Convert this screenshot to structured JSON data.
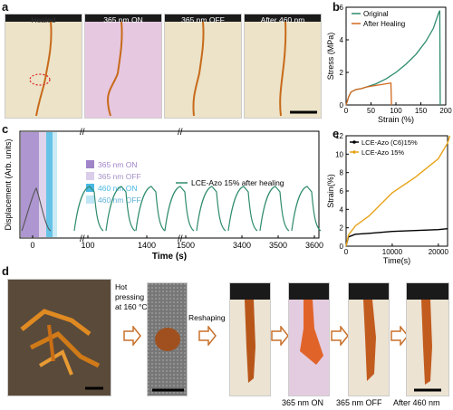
{
  "panel_a": {
    "label": "a",
    "photos": [
      "Healed",
      "365 nm ON",
      "365 nm OFF",
      "After 460 nm"
    ]
  },
  "panel_b": {
    "label": "b",
    "chart_data": {
      "type": "line",
      "xlabel": "Strain (%)",
      "ylabel": "Stress (MPa)",
      "xlim": [
        0,
        200
      ],
      "ylim": [
        0,
        6
      ],
      "xticks": [
        "0",
        "50",
        "100",
        "150",
        "200"
      ],
      "yticks": [
        "0",
        "2",
        "4",
        "6"
      ],
      "legend_position": "top-left",
      "series": [
        {
          "name": "Original",
          "color": "#2e8b6e",
          "x": [
            0,
            5,
            10,
            20,
            30,
            35,
            40,
            60,
            80,
            100,
            120,
            140,
            160,
            175,
            185,
            188,
            189
          ],
          "y": [
            0,
            0.5,
            0.8,
            0.95,
            1.0,
            1.05,
            1.1,
            1.3,
            1.6,
            2.0,
            2.5,
            3.1,
            3.9,
            4.7,
            5.6,
            5.8,
            0
          ]
        },
        {
          "name": "After Healing",
          "color": "#d2691e",
          "x": [
            0,
            5,
            10,
            20,
            30,
            35,
            40,
            60,
            80,
            90,
            91
          ],
          "y": [
            0,
            0.5,
            0.8,
            0.95,
            1.0,
            1.05,
            1.1,
            1.2,
            1.3,
            1.35,
            0
          ]
        }
      ]
    }
  },
  "panel_c": {
    "label": "c",
    "chart_data": {
      "type": "line",
      "xlabel": "Time (s)",
      "ylabel": "Displacement (Arb. units)",
      "xticks": [
        "0",
        "100",
        "1400",
        "1500",
        "3400",
        "3500",
        "3600"
      ],
      "legend": [
        {
          "name": "365 nm ON",
          "color": "#a084c8"
        },
        {
          "name": "365 nm OFF",
          "color": "#d9cde9"
        },
        {
          "name": "460 nm ON",
          "color": "#4ab8e3"
        },
        {
          "name": "460 nm OFF",
          "color": "#bfe6f4"
        }
      ],
      "series_name": "LCE-Azo 15% after healing",
      "series_color": "#2e8b6e"
    }
  },
  "panel_e": {
    "label": "e",
    "chart_data": {
      "type": "line",
      "xlabel": "Time(s)",
      "ylabel": "Strain(%)",
      "xlim": [
        0,
        22000
      ],
      "ylim": [
        0,
        12
      ],
      "xticks": [
        "0",
        "10000",
        "20000"
      ],
      "yticks": [
        "0",
        "2",
        "4",
        "6",
        "8",
        "10",
        "12"
      ],
      "legend_position": "top-left",
      "series": [
        {
          "name": "LCE-Azo (C6)15%",
          "color": "#000000",
          "x": [
            0,
            500,
            2000,
            5000,
            10000,
            15000,
            20000,
            22000
          ],
          "y": [
            0,
            1.0,
            1.3,
            1.4,
            1.6,
            1.7,
            1.8,
            1.9
          ]
        },
        {
          "name": "LCE-Azo 15%",
          "color": "#e8a317",
          "x": [
            0,
            500,
            2000,
            5000,
            10000,
            15000,
            20000,
            22000,
            22500
          ],
          "y": [
            0,
            1.2,
            2.2,
            3.3,
            5.8,
            7.5,
            9.5,
            11.2,
            12.0
          ]
        }
      ]
    }
  },
  "panel_d": {
    "label": "d",
    "step1": "Hot pressing at 160 °C",
    "step1_line1": "Hot",
    "step1_line2": "pressing",
    "step1_line3": "at 160 °C",
    "step2": "Reshaping",
    "captions": [
      "365 nm ON",
      "365 nm OFF",
      "After 460 nm"
    ]
  }
}
